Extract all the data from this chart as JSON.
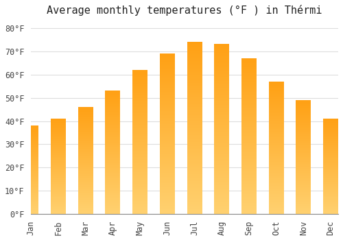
{
  "title": "Average monthly temperatures (°F ) in Thérmi",
  "months": [
    "Jan",
    "Feb",
    "Mar",
    "Apr",
    "May",
    "Jun",
    "Jul",
    "Aug",
    "Sep",
    "Oct",
    "Nov",
    "Dec"
  ],
  "values": [
    38,
    41,
    46,
    53,
    62,
    69,
    74,
    73,
    67,
    57,
    49,
    41
  ],
  "bar_color_top": "#FFA020",
  "bar_color_bottom": "#FFD070",
  "background_color": "#FFFFFF",
  "grid_color": "#DDDDDD",
  "ylim": [
    0,
    83
  ],
  "yticks": [
    0,
    10,
    20,
    30,
    40,
    50,
    60,
    70,
    80
  ],
  "title_fontsize": 11,
  "tick_fontsize": 8.5,
  "bar_width": 0.55
}
